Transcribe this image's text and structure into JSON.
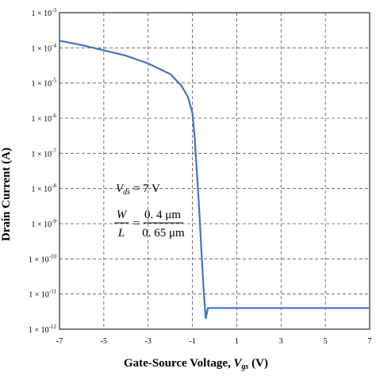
{
  "chart_data": {
    "type": "line",
    "x_axis": {
      "label_main": "Gate-Source Voltage, ",
      "label_var": "V",
      "label_sub": "gs",
      "label_unit": " (V)",
      "range": [
        -7,
        7
      ],
      "ticks": [
        -7,
        -5,
        -3,
        -1,
        1,
        3,
        5,
        7
      ],
      "tick_labels": [
        "-7",
        "-5",
        "-3",
        "-1",
        "1",
        "3",
        "5",
        "7"
      ]
    },
    "y_axis": {
      "label": "Drain Current (A)",
      "scale": "log",
      "range": [
        1e-12,
        0.001
      ],
      "ticks": [
        0.001,
        0.0001,
        1e-05,
        1e-06,
        1e-07,
        1e-08,
        1e-09,
        1e-10,
        1e-11,
        1e-12
      ],
      "tick_mantissa": "1 × 10",
      "tick_exponents": [
        "-3",
        "-4",
        "-5",
        "-6",
        "-7",
        "-8",
        "-9",
        "-10",
        "-11",
        "-12"
      ]
    },
    "grid": "dashed",
    "series": [
      {
        "color": "#4472c4",
        "x": [
          -7,
          -6,
          -5,
          -4,
          -3,
          -2,
          -1.5,
          -1.2,
          -1.0,
          -0.9,
          -0.8,
          -0.7,
          -0.6,
          -0.5,
          -0.4,
          -0.3,
          -0.2,
          -0.1,
          -0.05,
          0,
          0.2,
          1,
          3,
          5,
          7
        ],
        "y": [
          0.00016,
          0.00012,
          8.5e-05,
          6e-05,
          3.6e-05,
          1.8e-05,
          8.5e-06,
          4e-06,
          1.4e-06,
          3e-07,
          3e-08,
          3e-09,
          2e-10,
          1.5e-11,
          2e-12,
          4e-12,
          4e-12,
          4e-12,
          4e-12,
          4e-12,
          4e-12,
          4e-12,
          4e-12,
          4e-12,
          4e-12
        ]
      }
    ],
    "annotations": {
      "vds_var": "V",
      "vds_sub": "ds",
      "vds_value": " = 7 V",
      "w": "W",
      "l": "L",
      "equals": "=",
      "w_value": "0. 4 μm",
      "l_value": "0. 65 μm"
    }
  }
}
